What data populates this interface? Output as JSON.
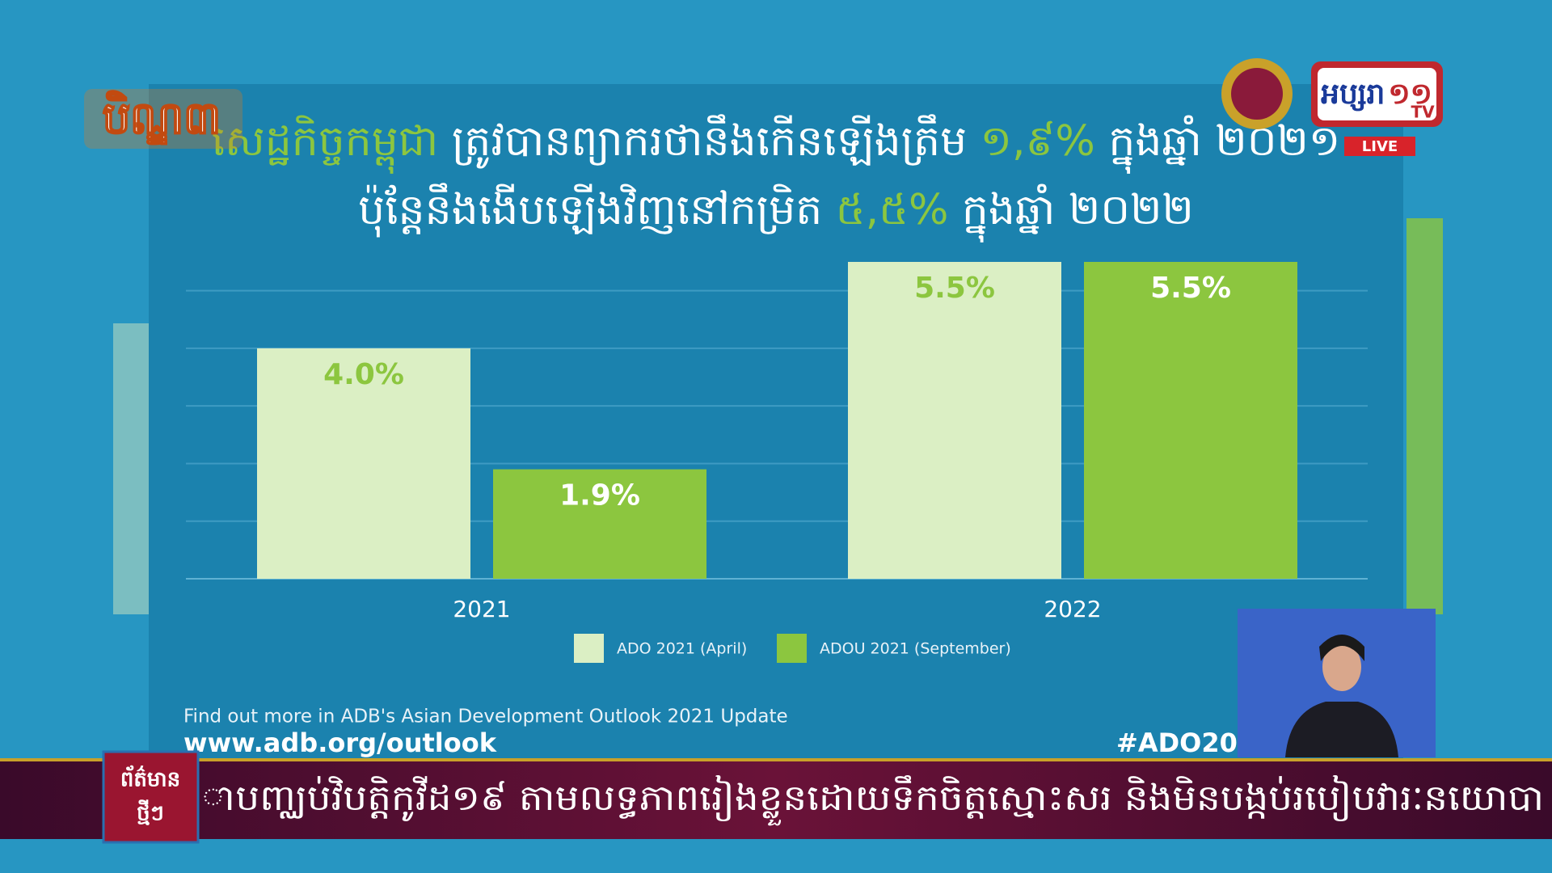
{
  "chart_data": {
    "type": "bar",
    "title_parts": [
      [
        {
          "text": "សេដ្ឋកិច្ចកម្ពុជា",
          "color": "#8cc63f"
        },
        {
          "text": " ត្រូវបានព្យាករថានឹងកើនឡើងត្រឹម ",
          "color": "#ffffff"
        },
        {
          "text": "១,៩%",
          "color": "#8cc63f"
        },
        {
          "text": " ក្នុងឆ្នាំ ២០២១",
          "color": "#ffffff"
        }
      ],
      [
        {
          "text": "ប៉ុន្តែនឹងងើបឡើងវិញនៅកម្រិត ",
          "color": "#ffffff"
        },
        {
          "text": "៥,៥%",
          "color": "#8cc63f"
        },
        {
          "text": " ក្នុងឆ្នាំ ២០២២",
          "color": "#ffffff"
        }
      ]
    ],
    "categories": [
      "2021",
      "2022"
    ],
    "series": [
      {
        "name": "ADO 2021 (April)",
        "color": "#dbefc4",
        "label_color": "#8cc63f",
        "values": [
          4.0,
          5.5
        ],
        "value_labels": [
          "4.0%",
          "5.5%"
        ]
      },
      {
        "name": "ADOU 2021 (September)",
        "color": "#8cc63f",
        "label_color": "#ffffff",
        "values": [
          1.9,
          5.5
        ],
        "value_labels": [
          "1.9%",
          "5.5%"
        ]
      }
    ],
    "ylim": [
      0,
      5.5
    ],
    "yticks": [
      0,
      1,
      2,
      3,
      4,
      5
    ],
    "grid": true,
    "footer": "Find out more in ADB's Asian Development Outlook 2021 Update",
    "url": "www.adb.org/outlook",
    "hashtag": "#ADO20"
  },
  "broadcast": {
    "program_logo": "បិណ្ឌ៣",
    "channel": "អប្សរា",
    "channel_number": "១១",
    "channel_tv": "TV",
    "live": "LIVE",
    "ticker_label": [
      "ព័ត៌មាន",
      "ថ្មីៗ"
    ],
    "ticker": "ាបញ្ឈប់វិបត្តិកូវីដ១៩ តាមលទ្ធភាពរៀងខ្លួនដោយទឹកចិត្តស្មោះសរ និងមិនបង្កប់របៀបវារៈនយោបា"
  }
}
